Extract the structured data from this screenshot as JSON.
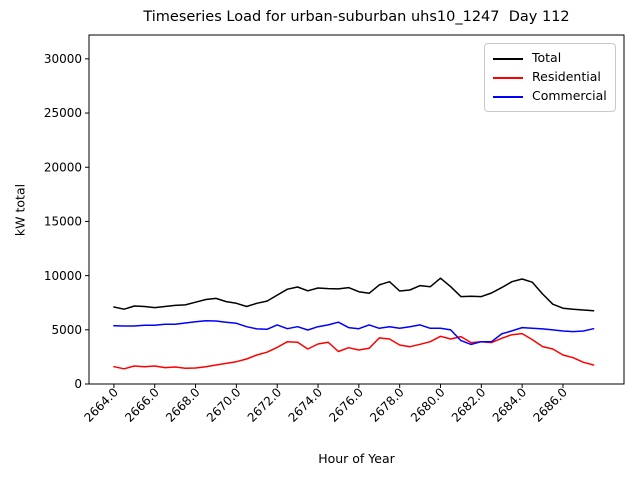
{
  "chart_data": {
    "type": "line",
    "title": "Timeseries Load for urban-suburban uhs10_1247  Day 112",
    "xlabel": "Hour of Year",
    "ylabel": "kW total",
    "xlim": [
      2662.78,
      2688.99
    ],
    "ylim": [
      0,
      32200
    ],
    "grid": false,
    "legend_position": "upper right",
    "x_ticks": [
      2664,
      2666,
      2668,
      2670,
      2672,
      2674,
      2676,
      2678,
      2680,
      2682,
      2684,
      2686
    ],
    "x_tick_labels": [
      "2664.0",
      "2666.0",
      "2668.0",
      "2670.0",
      "2672.0",
      "2674.0",
      "2676.0",
      "2678.0",
      "2680.0",
      "2682.0",
      "2684.0",
      "2686.0"
    ],
    "y_ticks": [
      0,
      5000,
      10000,
      15000,
      20000,
      25000,
      30000
    ],
    "y_tick_labels": [
      "0",
      "5000",
      "10000",
      "15000",
      "20000",
      "25000",
      "30000"
    ],
    "x": [
      2664.0,
      2664.5,
      2665.0,
      2665.5,
      2666.0,
      2666.5,
      2667.0,
      2667.5,
      2668.0,
      2668.5,
      2669.0,
      2669.5,
      2670.0,
      2670.5,
      2671.0,
      2671.5,
      2672.0,
      2672.5,
      2673.0,
      2673.5,
      2674.0,
      2674.5,
      2675.0,
      2675.5,
      2676.0,
      2676.5,
      2677.0,
      2677.5,
      2678.0,
      2678.5,
      2679.0,
      2679.5,
      2680.0,
      2680.5,
      2681.0,
      2681.5,
      2682.0,
      2682.5,
      2683.0,
      2683.5,
      2684.0,
      2684.5,
      2685.0,
      2685.5,
      2686.0,
      2686.5,
      2687.0,
      2687.5
    ],
    "series": [
      {
        "name": "Total",
        "color": "#000000",
        "values": [
          7100,
          6900,
          7200,
          7150,
          7050,
          7150,
          7250,
          7300,
          7550,
          7800,
          7900,
          7600,
          7450,
          7150,
          7450,
          7650,
          8200,
          8750,
          8950,
          8600,
          8860,
          8800,
          8770,
          8890,
          8520,
          8370,
          9140,
          9440,
          8580,
          8670,
          9080,
          8980,
          9760,
          8980,
          8060,
          8100,
          8060,
          8400,
          8890,
          9440,
          9690,
          9390,
          8300,
          7360,
          6990,
          6890,
          6830,
          6750
        ]
      },
      {
        "name": "Residential",
        "color": "#ff0000",
        "values": [
          1600,
          1400,
          1660,
          1600,
          1660,
          1510,
          1570,
          1450,
          1480,
          1600,
          1750,
          1900,
          2060,
          2310,
          2680,
          2930,
          3380,
          3900,
          3850,
          3230,
          3690,
          3850,
          3000,
          3350,
          3140,
          3290,
          4250,
          4150,
          3600,
          3440,
          3660,
          3900,
          4400,
          4150,
          4370,
          3820,
          3900,
          3820,
          4220,
          4550,
          4650,
          4100,
          3450,
          3230,
          2680,
          2430,
          2000,
          1750
        ]
      },
      {
        "name": "Commercial",
        "color": "#0000ff",
        "values": [
          5380,
          5350,
          5350,
          5420,
          5420,
          5510,
          5510,
          5630,
          5750,
          5840,
          5810,
          5690,
          5600,
          5290,
          5080,
          5050,
          5450,
          5100,
          5290,
          4980,
          5290,
          5450,
          5700,
          5200,
          5100,
          5450,
          5140,
          5290,
          5140,
          5290,
          5450,
          5140,
          5140,
          4990,
          4000,
          3650,
          3900,
          3900,
          4620,
          4900,
          5200,
          5150,
          5080,
          4990,
          4890,
          4830,
          4890,
          5100
        ]
      }
    ]
  }
}
